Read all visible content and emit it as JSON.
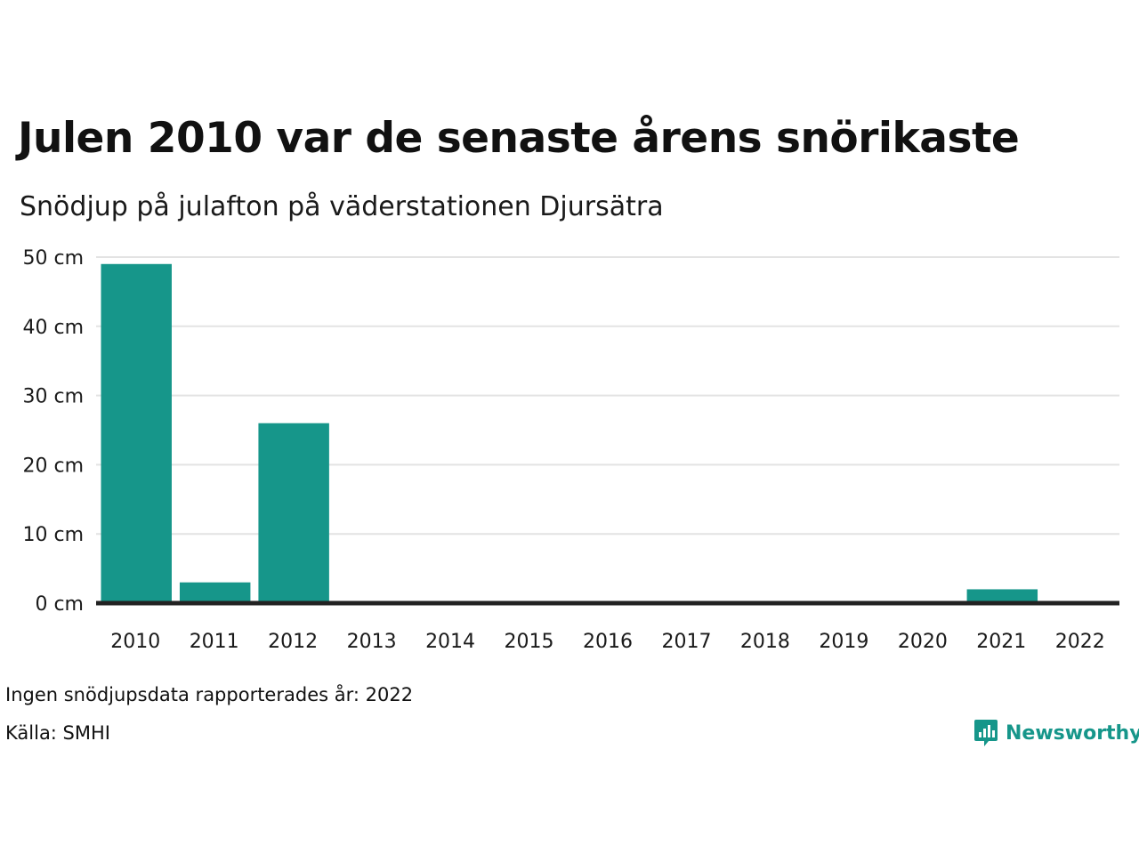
{
  "header": {
    "title": "Julen 2010 var de senaste årens snörikaste",
    "subtitle": "Snödjup på julafton på väderstationen Djursätra"
  },
  "footer": {
    "note": "Ingen snödjupsdata rapporterades år: 2022",
    "source": "Källa: SMHI"
  },
  "brand": {
    "name": "Newsworthy",
    "icon": "newsworthy-chart-bubble-icon",
    "color": "#16968a"
  },
  "chart_data": {
    "type": "bar",
    "categories": [
      "2010",
      "2011",
      "2012",
      "2013",
      "2014",
      "2015",
      "2016",
      "2017",
      "2018",
      "2019",
      "2020",
      "2021",
      "2022"
    ],
    "values": [
      49,
      3,
      26,
      0,
      0,
      0,
      0,
      0,
      0,
      0,
      0,
      2,
      null
    ],
    "unit": "cm",
    "y_ticks": [
      0,
      10,
      20,
      30,
      40,
      50
    ],
    "y_tick_labels": [
      "0 cm",
      "10 cm",
      "20 cm",
      "30 cm",
      "40 cm",
      "50 cm"
    ],
    "ylim": [
      0,
      50
    ],
    "grid": true,
    "bar_color": "#16968a",
    "grid_color": "#e3e3e3",
    "baseline_color": "#222222",
    "legend": "none"
  }
}
